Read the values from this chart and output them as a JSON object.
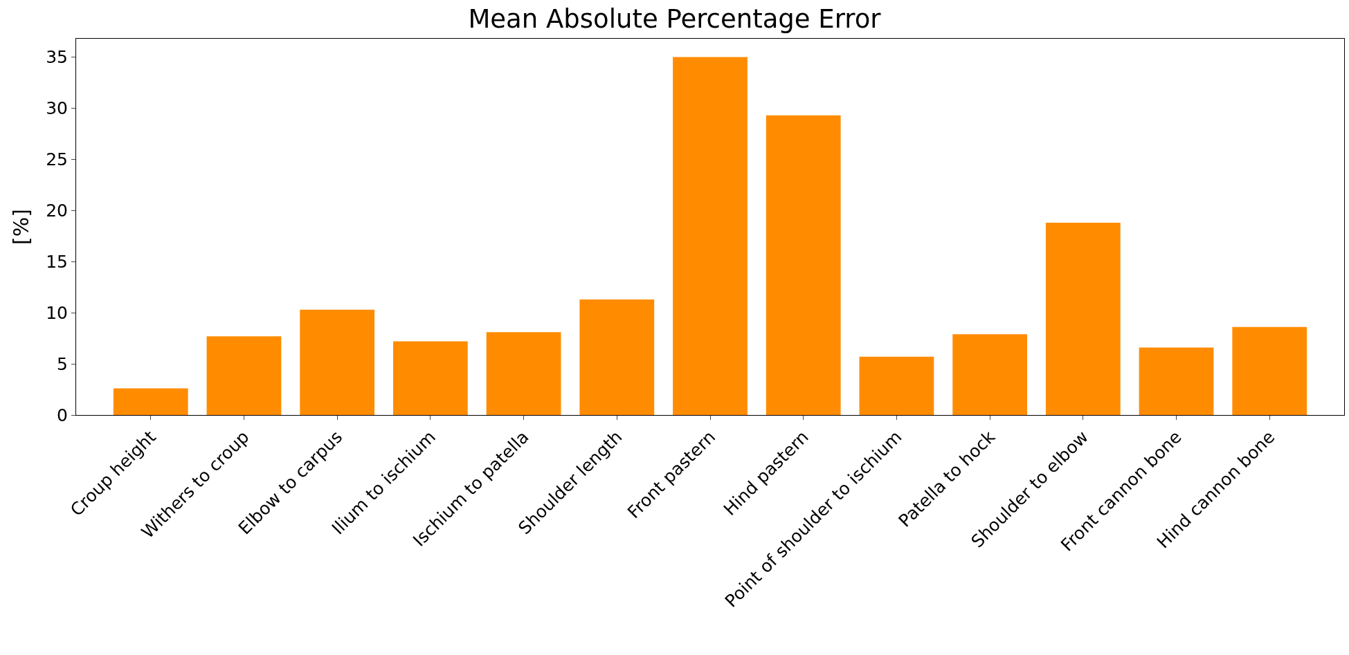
{
  "chart_data": {
    "type": "bar",
    "title": "Mean Absolute Percentage Error",
    "ylabel": "[%]",
    "categories": [
      "Croup height",
      "Withers to croup",
      "Elbow to carpus",
      "Ilium to ischium",
      "Ischium to patella",
      "Shoulder length",
      "Front pastern",
      "Hind pastern",
      "Point of shoulder to ischium",
      "Patella to hock",
      "Shoulder to elbow",
      "Front cannon bone",
      "Hind cannon bone"
    ],
    "values": [
      2.6,
      7.7,
      10.3,
      7.2,
      8.1,
      11.3,
      35.0,
      29.3,
      5.7,
      7.9,
      18.8,
      6.6,
      8.6
    ],
    "color": "#ff8c00",
    "ylim": [
      0,
      36.8
    ],
    "yticks": [
      0,
      5,
      10,
      15,
      20,
      25,
      30,
      35
    ]
  }
}
